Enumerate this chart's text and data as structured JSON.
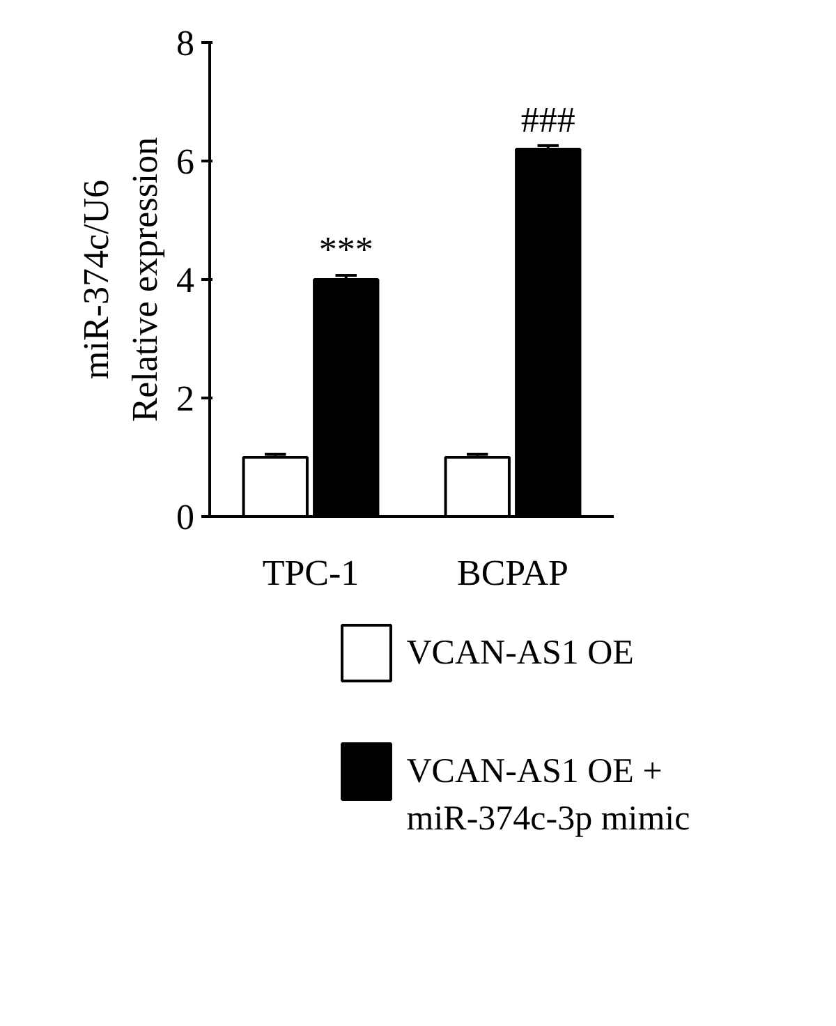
{
  "chart_data": {
    "type": "bar",
    "ylabel": "miR-374c/U6\nRelative expression",
    "categories": [
      "TPC-1",
      "BCPAP"
    ],
    "series": [
      {
        "name": "VCAN-AS1 OE",
        "color": "#ffffff",
        "values": [
          1.0,
          1.0
        ],
        "errors": [
          0.05,
          0.05
        ]
      },
      {
        "name": "VCAN-AS1 OE +\nmiR-374c-3p mimic",
        "color": "#000000",
        "values": [
          4.0,
          6.2
        ],
        "errors": [
          0.07,
          0.06
        ]
      }
    ],
    "ylim": [
      0,
      8
    ],
    "yticks": [
      0,
      2,
      4,
      6,
      8
    ],
    "grid": false,
    "legend": "bottom",
    "annotations": [
      "***",
      "###"
    ]
  }
}
